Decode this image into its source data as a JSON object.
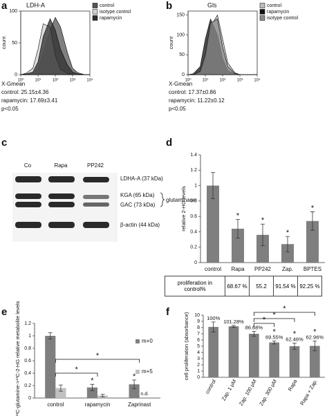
{
  "panel_labels": [
    "a",
    "b",
    "c",
    "d",
    "e",
    "f"
  ],
  "blot": {
    "lanes": [
      "Co",
      "Rapa",
      "PP242"
    ],
    "rows": [
      "LDHA-A (37 kDa)",
      "KGA (65 kDa)",
      "GAC (73 kDa)",
      "β-actin (44 kDa)"
    ],
    "group_label": "glutaminase"
  },
  "chart_data": [
    {
      "type": "flow",
      "title": "LDH-A",
      "y_label": "count",
      "log_x": true,
      "x": [
        1,
        2,
        5,
        10,
        20,
        50,
        100,
        200,
        500,
        1000,
        2000,
        5000,
        10000
      ],
      "xlim": [
        1,
        10000
      ],
      "xticks": [
        {
          "value": 1,
          "label": "10⁰"
        },
        {
          "value": 10,
          "label": "10¹"
        },
        {
          "value": 100,
          "label": "10²"
        },
        {
          "value": 1000,
          "label": "10³"
        },
        {
          "value": 10000,
          "label": "10⁴"
        }
      ],
      "ylim": [
        0,
        100
      ],
      "yticks": [
        0,
        50,
        100
      ],
      "series": [
        {
          "name": "control",
          "color": "#555555",
          "values": [
            0,
            0,
            2,
            10,
            35,
            70,
            90,
            75,
            35,
            10,
            3,
            0,
            0
          ]
        },
        {
          "name": "isotype control",
          "color": "#d0d0d0",
          "values": [
            0,
            2,
            10,
            40,
            80,
            75,
            30,
            8,
            2,
            0,
            0,
            0,
            0
          ]
        },
        {
          "name": "rapamycin",
          "color": "#2e2e2e",
          "values": [
            0,
            1,
            4,
            20,
            60,
            88,
            70,
            40,
            15,
            4,
            1,
            0,
            0
          ]
        }
      ],
      "stats": [
        "X-Gmean",
        "control: 25.15±4.36",
        "rapamycin: 17.69±3.41",
        "p<0.05"
      ]
    },
    {
      "type": "flow",
      "title": "Gls",
      "y_label": "count",
      "log_x": true,
      "x": [
        1,
        2,
        5,
        10,
        20,
        50,
        100,
        200,
        500,
        1000,
        2000,
        5000,
        10000
      ],
      "xlim": [
        1,
        10000
      ],
      "xticks": [
        {
          "value": 1,
          "label": "10⁰"
        },
        {
          "value": 10,
          "label": "10¹"
        },
        {
          "value": 100,
          "label": "10²"
        },
        {
          "value": 1000,
          "label": "10³"
        },
        {
          "value": 10000,
          "label": "10⁴"
        }
      ],
      "ylim": [
        0,
        160
      ],
      "yticks": [
        0,
        50,
        100,
        150
      ],
      "series": [
        {
          "name": "control",
          "color": "#bdbdbd",
          "values": [
            0,
            0,
            5,
            40,
            120,
            150,
            90,
            30,
            5,
            0,
            0,
            0,
            0
          ]
        },
        {
          "name": "rapamycin",
          "color": "#111111",
          "values": [
            0,
            2,
            20,
            90,
            140,
            100,
            40,
            10,
            2,
            0,
            0,
            0,
            0
          ]
        },
        {
          "name": "isotype control",
          "color": "#8a8a8a",
          "values": [
            0,
            0,
            8,
            50,
            130,
            140,
            70,
            20,
            3,
            0,
            0,
            0,
            0
          ]
        }
      ],
      "stats": [
        "X-Gmean",
        "control: 17.37±0.86",
        "rapamycin: 11.22±0.12",
        "p<0.05"
      ]
    },
    {
      "type": "bar",
      "y_label": "relative 2-HG levels",
      "categories": [
        "control",
        "Rapa",
        "PP242",
        "Zap.",
        "BPTES"
      ],
      "ylim": [
        0,
        1.4
      ],
      "yticks": [
        0,
        0.2,
        0.4,
        0.6,
        0.8,
        1,
        1.2,
        1.4
      ],
      "series": [
        {
          "color": "#7f7f7f",
          "values": [
            1.0,
            0.44,
            0.36,
            0.24,
            0.54
          ],
          "errors": [
            0.17,
            0.12,
            0.14,
            0.1,
            0.12
          ],
          "significance": [
            null,
            "*",
            "*",
            "*",
            "*"
          ]
        }
      ],
      "table": {
        "row_label": "proliferation in control%",
        "cells": [
          "68.67 %",
          "55.2",
          "91.54 %",
          "92.25 %"
        ]
      }
    },
    {
      "type": "bar",
      "y_label": "U¹³C-glutamine->¹³C-2-HG relative metabolite levels",
      "categories": [
        "control",
        "rapamycin",
        "Zaprinast"
      ],
      "ylim": [
        0,
        1.2
      ],
      "yticks": [
        0,
        0.2,
        0.4,
        0.6,
        0.8,
        1,
        1.2
      ],
      "series": [
        {
          "name": "m+0",
          "color": "#7f7f7f",
          "values": [
            1.0,
            0.17,
            0.22
          ],
          "errors": [
            0.05,
            0.05,
            0.07
          ],
          "significance": [
            null,
            "*",
            "*"
          ]
        },
        {
          "name": "m+5",
          "color": "#c0c0c0",
          "values": [
            0.16,
            0.04,
            null
          ],
          "errors": [
            0.05,
            0.02,
            null
          ],
          "value_labels": [
            null,
            null,
            "n.d."
          ]
        }
      ],
      "brackets": [
        "*",
        "*"
      ]
    },
    {
      "type": "bar",
      "y_label": "cell proliferation (absorbance)",
      "categories": [
        "control",
        "Zap. 1 μM",
        "Zap. 100 μM",
        "Zap. 300 μM",
        "Rapa",
        "Rapa + Zap."
      ],
      "ylim": [
        0,
        10
      ],
      "yticks": [
        0,
        1,
        2,
        3,
        4,
        5,
        6,
        7,
        8,
        9,
        10
      ],
      "series": [
        {
          "color": "#7f7f7f",
          "values": [
            8.1,
            8.2,
            7.0,
            5.6,
            5.0,
            5.05
          ],
          "errors": [
            0.8,
            0.15,
            0.4,
            0.25,
            0.5,
            0.8
          ],
          "significance": [
            null,
            null,
            null,
            "*",
            "*",
            "*"
          ],
          "percent_labels": [
            "100%",
            "101.28%",
            "86.68%",
            "69.55%",
            "62.46%",
            "62.96%"
          ]
        }
      ],
      "brackets": [
        "*",
        "*",
        "*"
      ]
    }
  ]
}
